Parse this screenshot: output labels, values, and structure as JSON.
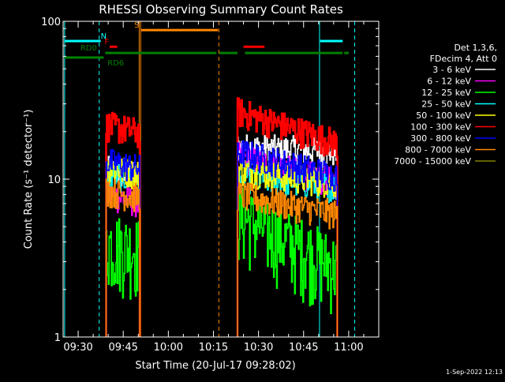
{
  "chart_data": {
    "type": "line",
    "title": "RHESSI Observing Summary Count Rates",
    "xlabel": "Start Time (20-Jul-17 09:28:02)",
    "ylabel": "Count Rate (s⁻¹ detector⁻¹)",
    "yscale": "log",
    "ylim": [
      1,
      100
    ],
    "xlim_minutes": [
      -5,
      100
    ],
    "x_ticks": [
      {
        "label": "09:30",
        "value": 0
      },
      {
        "label": "09:45",
        "value": 15
      },
      {
        "label": "10:00",
        "value": 30
      },
      {
        "label": "10:15",
        "value": 45
      },
      {
        "label": "10:30",
        "value": 60
      },
      {
        "label": "10:45",
        "value": 75
      },
      {
        "label": "11:00",
        "value": 90
      }
    ],
    "y_ticks": [
      {
        "label": "1",
        "value": 1
      },
      {
        "label": "10",
        "value": 10
      },
      {
        "label": "100",
        "value": 100
      }
    ],
    "date_stamp": "1-Sep-2022 12:13",
    "legend": {
      "header": [
        "Det 1,3,6,",
        "FDecim 4, Att 0"
      ],
      "position": "right"
    },
    "series": [
      {
        "name": "3 - 6 keV",
        "color": "#ffffff",
        "levels": [
          11.5,
          16.0,
          15.0
        ]
      },
      {
        "name": "6 - 12 keV",
        "color": "#ff00ff",
        "levels": [
          8.0,
          14.0,
          9.5
        ]
      },
      {
        "name": "12 - 25 keV",
        "color": "#00ff00",
        "levels": [
          4.0,
          6.0,
          2.8
        ]
      },
      {
        "name": "25 - 50 keV",
        "color": "#00ffff",
        "levels": [
          11.0,
          10.5,
          9.0
        ]
      },
      {
        "name": "50 - 100 keV",
        "color": "#ffff00",
        "levels": [
          12.0,
          11.5,
          9.5
        ]
      },
      {
        "name": "100 - 300 keV",
        "color": "#ff0000",
        "levels": [
          22.0,
          27.0,
          17.0
        ]
      },
      {
        "name": "300 - 800 keV",
        "color": "#0000ff",
        "levels": [
          13.0,
          15.0,
          10.5
        ]
      },
      {
        "name": "800 - 7000 keV",
        "color": "#ff8800",
        "levels": [
          8.5,
          8.0,
          6.0
        ]
      },
      {
        "name": "7000 - 15000 keV",
        "color": "#808000",
        "levels": []
      }
    ],
    "data_segments": [
      {
        "start": 9.3,
        "end": 20.5
      },
      {
        "start": 53.0,
        "end": 86.2
      }
    ],
    "flag_bars": [
      {
        "label": "N",
        "color": "#00ffff",
        "y": 75,
        "segments": [
          [
            -4.5,
            7.5
          ],
          [
            80.5,
            88.0
          ]
        ],
        "label_at": 8.5
      },
      {
        "label": "S",
        "color": "#ff8800",
        "y": 88,
        "segments": [
          [
            21.0,
            46.5
          ]
        ],
        "label_at": 19.5
      },
      {
        "label": "F",
        "color": "#ff0000",
        "y": 69,
        "segments": [
          [
            10.5,
            13.0
          ],
          [
            55.0,
            62.0
          ]
        ],
        "label_at": 9.5
      },
      {
        "label": "RD0",
        "color": "#008000",
        "y": 63,
        "segments": [
          [
            9.0,
            46.0
          ],
          [
            47.0,
            53.0
          ],
          [
            55.5,
            88.0
          ],
          [
            88.5,
            90.0
          ]
        ],
        "label_at": 3.5
      },
      {
        "label": "RD6",
        "color": "#008000",
        "y": 59,
        "segments": [
          [
            -4.5,
            8.5
          ]
        ],
        "label_at": 12.5
      }
    ],
    "vertical_lines": [
      {
        "x": -4.5,
        "color": "#00ffff",
        "style": "solid"
      },
      {
        "x": 7.0,
        "color": "#00ffff",
        "style": "dashed"
      },
      {
        "x": 20.3,
        "color": "#ff8800",
        "style": "solid"
      },
      {
        "x": 20.8,
        "color": "#ff8800",
        "style": "solid"
      },
      {
        "x": 46.8,
        "color": "#ff8800",
        "style": "dashed"
      },
      {
        "x": 80.3,
        "color": "#00ffff",
        "style": "solid"
      },
      {
        "x": 92.0,
        "color": "#00ffff",
        "style": "dashed"
      }
    ]
  }
}
